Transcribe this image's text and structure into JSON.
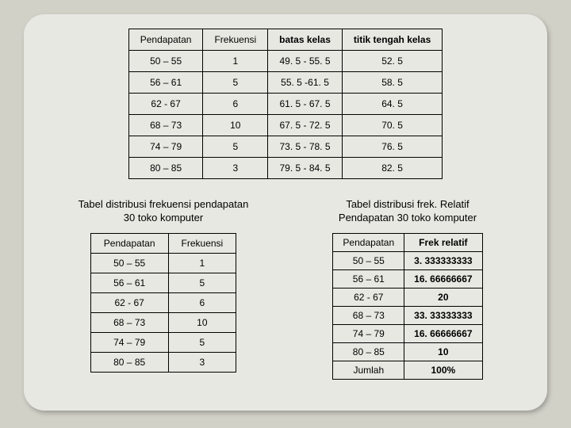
{
  "background_color": "#d1d1c8",
  "card_color": "#e8e8e2",
  "border_color": "#000000",
  "font_family": "Arial",
  "top_table": {
    "columns": [
      {
        "label": "Pendapatan",
        "bold": false
      },
      {
        "label": "Frekuensi",
        "bold": false
      },
      {
        "label": "batas kelas",
        "bold": true
      },
      {
        "label": "titik tengah kelas",
        "bold": true
      }
    ],
    "rows": [
      [
        "50 – 55",
        "1",
        "49. 5 - 55. 5",
        "52. 5"
      ],
      [
        "56 – 61",
        "5",
        "55. 5 -61. 5",
        "58. 5"
      ],
      [
        "62 - 67",
        "6",
        "61. 5 - 67. 5",
        "64. 5"
      ],
      [
        "68 – 73",
        "10",
        "67. 5 - 72. 5",
        "70. 5"
      ],
      [
        "74 – 79",
        "5",
        "73. 5 - 78. 5",
        "76. 5"
      ],
      [
        "80 – 85",
        "3",
        "79. 5 - 84. 5",
        "82. 5"
      ]
    ]
  },
  "left_caption_l1": "Tabel distribusi frekuensi pendapatan",
  "left_caption_l2": "30 toko komputer",
  "left_table": {
    "columns": [
      "Pendapatan",
      "Frekuensi"
    ],
    "rows": [
      [
        "50 – 55",
        "1"
      ],
      [
        "56 – 61",
        "5"
      ],
      [
        "62 - 67",
        "6"
      ],
      [
        "68 – 73",
        "10"
      ],
      [
        "74 – 79",
        "5"
      ],
      [
        "80 – 85",
        "3"
      ]
    ]
  },
  "right_caption_l1": "Tabel distribusi frek. Relatif",
  "right_caption_l2": "Pendapatan 30 toko komputer",
  "right_table": {
    "columns": [
      {
        "label": "Pendapatan",
        "bold": false
      },
      {
        "label": "Frek relatif",
        "bold": true
      }
    ],
    "rows": [
      [
        "50 – 55",
        "3. 333333333"
      ],
      [
        "56 – 61",
        "16. 66666667"
      ],
      [
        "62 - 67",
        "20"
      ],
      [
        "68 – 73",
        "33. 33333333"
      ],
      [
        "74 – 79",
        "16. 66666667"
      ],
      [
        "80 – 85",
        "10"
      ],
      [
        "Jumlah",
        "100%"
      ]
    ]
  }
}
